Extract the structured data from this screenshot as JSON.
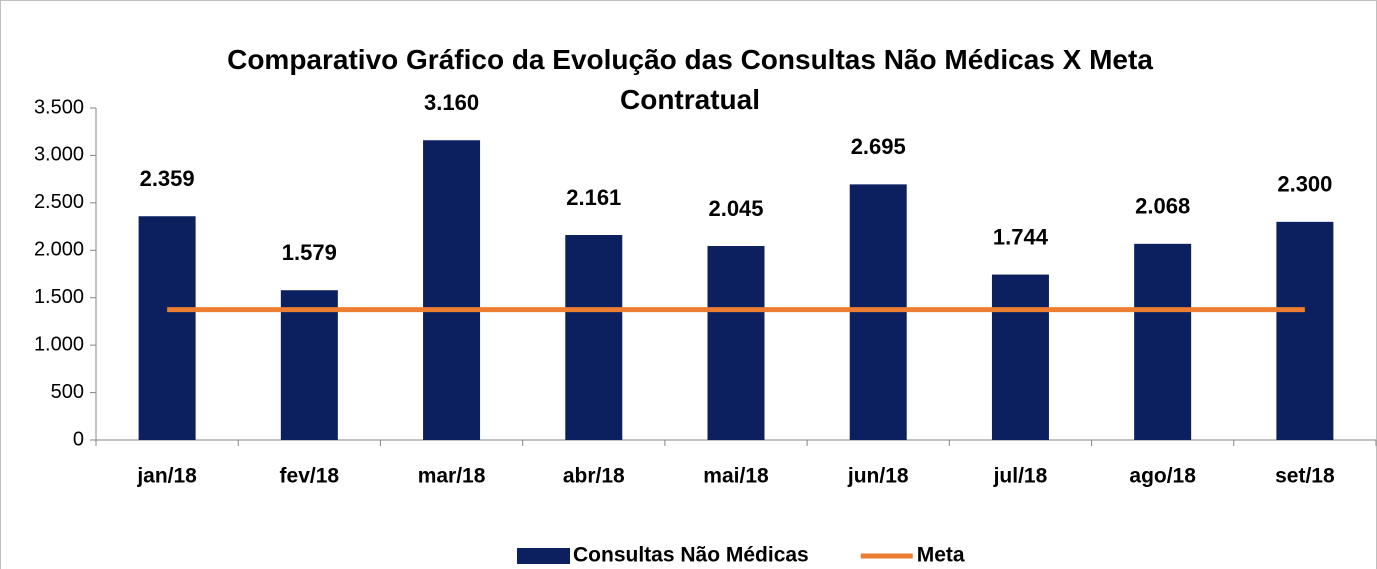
{
  "chart_data": {
    "type": "bar",
    "title": "Comparativo Gráfico da Evolução das Consultas Não Médicas X Meta Contratual",
    "categories": [
      "jan/18",
      "fev/18",
      "mar/18",
      "abr/18",
      "mai/18",
      "jun/18",
      "jul/18",
      "ago/18",
      "set/18"
    ],
    "series": [
      {
        "name": "Consultas Não Médicas",
        "type": "bar",
        "color": "#0c2060",
        "values": [
          2359,
          1579,
          3160,
          2161,
          2045,
          2695,
          1744,
          2068,
          2300
        ],
        "value_labels": [
          "2.359",
          "1.579",
          "3.160",
          "2.161",
          "2.045",
          "2.695",
          "1.744",
          "2.068",
          "2.300"
        ]
      },
      {
        "name": "Meta",
        "type": "line",
        "color": "#ed7d31",
        "values": [
          1375,
          1375,
          1375,
          1375,
          1375,
          1375,
          1375,
          1375,
          1375
        ]
      }
    ],
    "ylim": [
      0,
      3500
    ],
    "yticks": [
      0,
      500,
      {
        "value": 1000,
        "label": "1.000"
      },
      {
        "value": 1500,
        "label": "1.500"
      },
      {
        "value": 2000,
        "label": "2.000"
      },
      {
        "value": 2500,
        "label": "2.500"
      },
      {
        "value": 3000,
        "label": "3.000"
      },
      {
        "value": 3500,
        "label": "3.500"
      }
    ],
    "grid": false,
    "legend": "bottom"
  }
}
